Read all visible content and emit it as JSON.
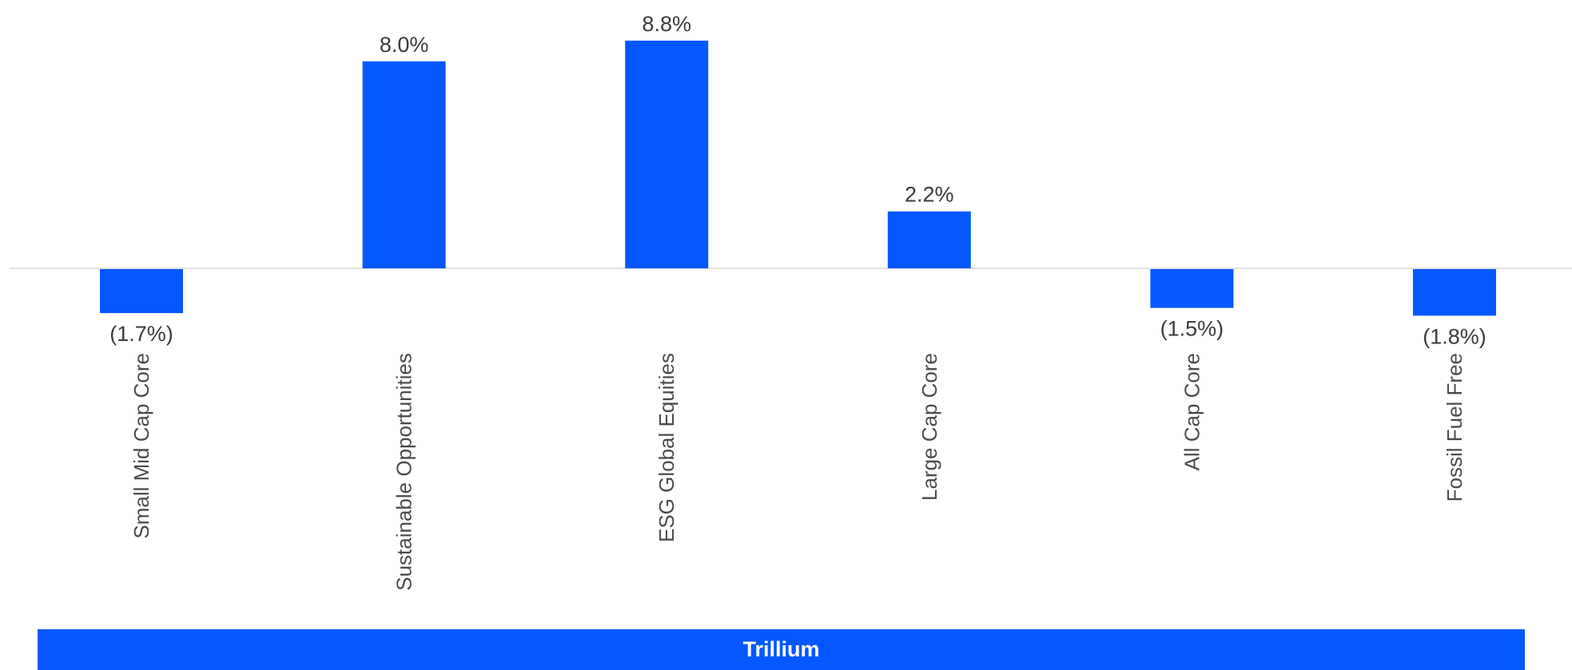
{
  "chart_data": {
    "type": "bar",
    "categories": [
      "Small Mid Cap Core",
      "Sustainable Opportunities",
      "ESG Global Equities",
      "Large Cap Core",
      "All Cap Core",
      "Fossil Fuel Free"
    ],
    "values": [
      -1.7,
      8.0,
      8.8,
      2.2,
      -1.5,
      -1.8
    ],
    "value_labels": [
      "(1.7%)",
      "8.0%",
      "8.8%",
      "2.2%",
      "(1.5%)",
      "(1.8%)"
    ],
    "unit": "%",
    "group_label": "Trillium",
    "bar_color": "#0558ff",
    "axis_color": "#d9d9d9",
    "grid": false,
    "legend": "none"
  }
}
